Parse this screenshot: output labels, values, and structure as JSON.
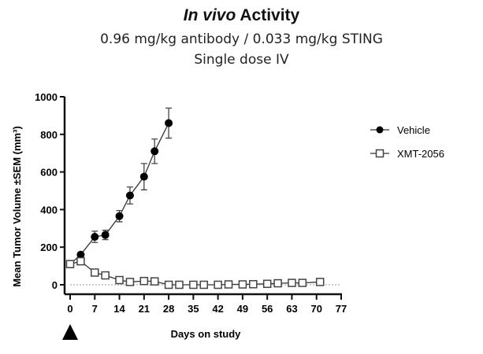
{
  "chart_data": {
    "type": "line",
    "title_italic": "In vivo",
    "title_rest": " Activity",
    "subtitle1": "0.96 mg/kg antibody / 0.033 mg/kg STING",
    "subtitle2": "Single dose IV",
    "xlabel": "Days on study",
    "ylabel": "Mean Tumor Volume ±SEM (mm³)",
    "xlim": [
      0,
      77
    ],
    "ylim": [
      0,
      1000
    ],
    "xticks": [
      0,
      7,
      14,
      21,
      28,
      35,
      42,
      49,
      56,
      63,
      70,
      77
    ],
    "yticks": [
      0,
      200,
      400,
      600,
      800,
      1000
    ],
    "legend_position": "right",
    "dose_marker": "triangle at day 0",
    "series": [
      {
        "name": "Vehicle",
        "marker": "filled-circle",
        "x": [
          0,
          3,
          7,
          10,
          14,
          17,
          21,
          24,
          28
        ],
        "y": [
          110,
          160,
          255,
          265,
          365,
          475,
          575,
          710,
          860
        ],
        "sem": [
          15,
          10,
          30,
          25,
          30,
          45,
          70,
          65,
          80
        ]
      },
      {
        "name": "XMT-2056",
        "marker": "open-square",
        "x": [
          0,
          3,
          7,
          10,
          14,
          17,
          21,
          24,
          28,
          31,
          35,
          38,
          42,
          45,
          49,
          52,
          56,
          59,
          63,
          66,
          71
        ],
        "y": [
          110,
          125,
          65,
          50,
          25,
          15,
          20,
          18,
          0,
          0,
          0,
          0,
          0,
          2,
          2,
          3,
          5,
          8,
          10,
          10,
          15
        ]
      }
    ]
  }
}
